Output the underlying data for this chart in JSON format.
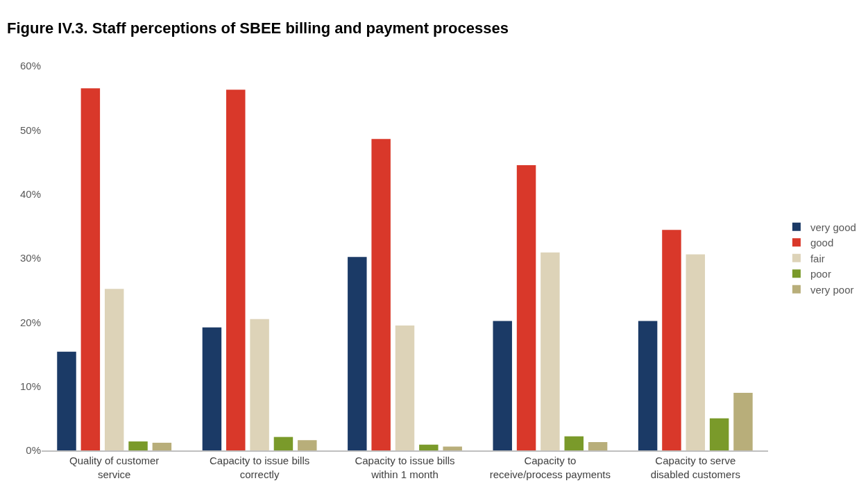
{
  "chart_data": {
    "type": "bar",
    "title": "Figure IV.3. Staff perceptions of SBEE billing and payment processes",
    "categories": [
      "Quality of customer service",
      "Capacity to issue bills correctly",
      "Capacity to issue bills within 1 month",
      "Capacity to receive/process payments",
      "Capacity to serve disabled customers"
    ],
    "series": [
      {
        "name": "very good",
        "color": "#1b3a66",
        "values": [
          15.4,
          19.2,
          30.2,
          20.2,
          20.2
        ]
      },
      {
        "name": "good",
        "color": "#d9382a",
        "values": [
          56.5,
          56.3,
          48.6,
          44.5,
          34.4
        ]
      },
      {
        "name": "fair",
        "color": "#ddd3b8",
        "values": [
          25.2,
          20.5,
          19.5,
          30.9,
          30.6
        ]
      },
      {
        "name": "poor",
        "color": "#7a9a2a",
        "values": [
          1.4,
          2.1,
          0.9,
          2.2,
          5.0
        ]
      },
      {
        "name": "very poor",
        "color": "#b8ae7a",
        "values": [
          1.2,
          1.6,
          0.6,
          1.3,
          9.0
        ]
      }
    ],
    "ylim": [
      0,
      60
    ],
    "yticks": [
      {
        "value": 0,
        "label": "0%"
      },
      {
        "value": 10,
        "label": "10%"
      },
      {
        "value": 20,
        "label": "20%"
      },
      {
        "value": 30,
        "label": "30%"
      },
      {
        "value": 40,
        "label": "40%"
      },
      {
        "value": 50,
        "label": "50%"
      },
      {
        "value": 60,
        "label": "60%"
      }
    ],
    "grid": false,
    "legend": "right"
  }
}
